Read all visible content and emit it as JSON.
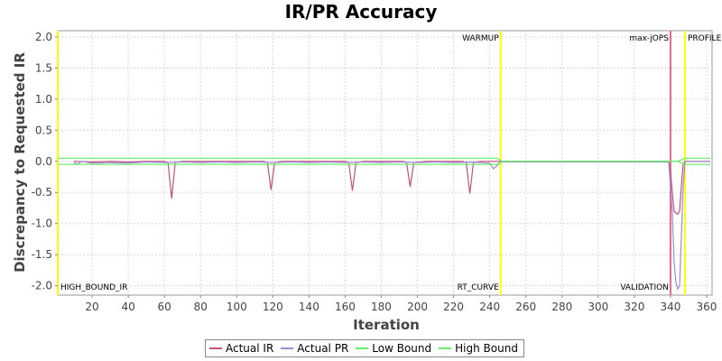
{
  "chart_data": {
    "type": "line",
    "title": "IR/PR Accuracy",
    "xlabel": "Iteration",
    "ylabel": "Discrepancy to Requested IR",
    "xlim": [
      1,
      363
    ],
    "ylim": [
      -2.15,
      2.1
    ],
    "x_ticks": [
      20,
      40,
      60,
      80,
      100,
      120,
      140,
      160,
      180,
      200,
      220,
      240,
      260,
      280,
      300,
      320,
      340,
      360
    ],
    "x_tick_labels": [
      "20",
      "40",
      "60",
      "80",
      "100",
      "120",
      "140",
      "160",
      "180",
      "200",
      "220",
      "240",
      "260",
      "280",
      "300",
      "320",
      "340",
      "360"
    ],
    "y_ticks": [
      2.0,
      1.5,
      1.0,
      0.5,
      0.0,
      -0.5,
      -1.0,
      -1.5,
      -2.0
    ],
    "y_tick_labels": [
      "2.0",
      "1.5",
      "1.0",
      "0.5",
      "0.0",
      "-0.5",
      "-1.0",
      "-1.5",
      "-2.0"
    ],
    "grid": true,
    "legend_position": "bottom",
    "markers": [
      {
        "x": 1,
        "label": "HIGH_BOUND_IR",
        "color": "#ffff00",
        "label_pos": "bottom-right"
      },
      {
        "x": 246,
        "label": "RT_CURVE",
        "color": "#ffff00",
        "label_pos": "bottom-left"
      },
      {
        "x": 246,
        "label": "WARMUP",
        "color": "#ffff00",
        "label_pos": "top-left"
      },
      {
        "x": 340,
        "label": "max-jOPS",
        "color": "#e86a8a",
        "label_pos": "top-left"
      },
      {
        "x": 340,
        "label": "VALIDATION",
        "color": "#e86a8a",
        "label_pos": "bottom-left"
      },
      {
        "x": 348,
        "label": "PROFILE",
        "color": "#ffff00",
        "label_pos": "top-right"
      }
    ],
    "series": [
      {
        "name": "Actual IR",
        "color": "#c8507c",
        "points": [
          [
            10,
            0.0
          ],
          [
            20,
            -0.01
          ],
          [
            30,
            0.0
          ],
          [
            40,
            -0.01
          ],
          [
            50,
            0.0
          ],
          [
            60,
            0.0
          ],
          [
            62,
            -0.02
          ],
          [
            64,
            -0.6
          ],
          [
            66,
            -0.02
          ],
          [
            70,
            0.0
          ],
          [
            80,
            0.0
          ],
          [
            90,
            0.0
          ],
          [
            100,
            0.0
          ],
          [
            110,
            0.0
          ],
          [
            115,
            0.0
          ],
          [
            117,
            -0.02
          ],
          [
            119,
            -0.46
          ],
          [
            121,
            -0.02
          ],
          [
            125,
            0.0
          ],
          [
            140,
            0.0
          ],
          [
            155,
            0.0
          ],
          [
            160,
            0.0
          ],
          [
            162,
            -0.02
          ],
          [
            164,
            -0.47
          ],
          [
            166,
            -0.02
          ],
          [
            170,
            0.0
          ],
          [
            185,
            0.0
          ],
          [
            192,
            0.0
          ],
          [
            194,
            -0.02
          ],
          [
            196,
            -0.41
          ],
          [
            198,
            -0.02
          ],
          [
            205,
            0.0
          ],
          [
            220,
            0.0
          ],
          [
            225,
            0.0
          ],
          [
            227,
            -0.02
          ],
          [
            229,
            -0.52
          ],
          [
            231,
            -0.02
          ],
          [
            235,
            0.0
          ],
          [
            242,
            0.0
          ],
          [
            246,
            0.0
          ],
          [
            250,
            0.0
          ],
          [
            280,
            0.0
          ],
          [
            310,
            0.0
          ],
          [
            339,
            0.0
          ],
          [
            340,
            -0.15
          ],
          [
            341,
            -0.5
          ],
          [
            342,
            -0.8
          ],
          [
            343,
            -0.83
          ],
          [
            344,
            -0.85
          ],
          [
            345,
            -0.8
          ],
          [
            346,
            -0.4
          ],
          [
            347,
            -0.05
          ],
          [
            348,
            0.0
          ],
          [
            362,
            0.0
          ]
        ]
      },
      {
        "name": "Actual PR",
        "color": "#9a8cd6",
        "points": [
          [
            10,
            -0.02
          ],
          [
            12,
            -0.05
          ],
          [
            14,
            0.0
          ],
          [
            20,
            -0.03
          ],
          [
            30,
            -0.02
          ],
          [
            40,
            -0.03
          ],
          [
            50,
            -0.01
          ],
          [
            60,
            -0.02
          ],
          [
            70,
            -0.01
          ],
          [
            80,
            -0.02
          ],
          [
            90,
            -0.01
          ],
          [
            100,
            -0.02
          ],
          [
            110,
            -0.01
          ],
          [
            120,
            -0.02
          ],
          [
            130,
            -0.01
          ],
          [
            140,
            -0.02
          ],
          [
            150,
            -0.01
          ],
          [
            160,
            -0.02
          ],
          [
            170,
            -0.01
          ],
          [
            180,
            -0.02
          ],
          [
            190,
            -0.01
          ],
          [
            200,
            -0.02
          ],
          [
            210,
            -0.01
          ],
          [
            220,
            -0.02
          ],
          [
            230,
            -0.01
          ],
          [
            240,
            -0.03
          ],
          [
            242,
            -0.12
          ],
          [
            244,
            -0.07
          ],
          [
            246,
            -0.01
          ],
          [
            280,
            -0.01
          ],
          [
            320,
            -0.01
          ],
          [
            339,
            -0.01
          ],
          [
            341,
            -0.8
          ],
          [
            342,
            -1.6
          ],
          [
            343,
            -1.95
          ],
          [
            344,
            -2.05
          ],
          [
            345,
            -2.0
          ],
          [
            346,
            -1.2
          ],
          [
            347,
            -0.4
          ],
          [
            348,
            0.0
          ],
          [
            362,
            0.0
          ]
        ]
      },
      {
        "name": "Low Bound",
        "color": "#66ee66",
        "points": [
          [
            1,
            -0.05
          ],
          [
            244,
            -0.05
          ],
          [
            247,
            0.0
          ],
          [
            340,
            0.0
          ],
          [
            344,
            0.0
          ],
          [
            348,
            -0.05
          ],
          [
            362,
            -0.05
          ]
        ]
      },
      {
        "name": "High Bound",
        "color": "#66ee66",
        "points": [
          [
            1,
            0.05
          ],
          [
            244,
            0.05
          ],
          [
            247,
            0.0
          ],
          [
            340,
            0.0
          ],
          [
            344,
            0.0
          ],
          [
            348,
            0.05
          ],
          [
            362,
            0.05
          ]
        ]
      }
    ]
  }
}
